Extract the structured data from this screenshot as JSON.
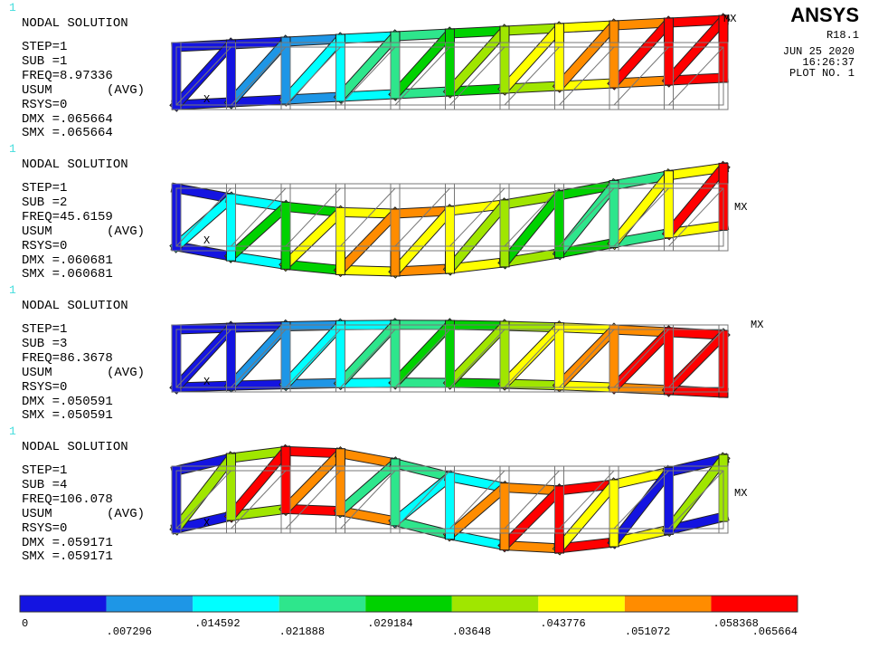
{
  "header": {
    "logo": "ANSYS",
    "version": "R18.1",
    "date": "JUN 25 2020",
    "time": "16:26:37",
    "plot": "PLOT NO.   1"
  },
  "panels": [
    {
      "window": "1",
      "title": "NODAL SOLUTION",
      "step": "STEP=1",
      "sub": "SUB =1",
      "freq": "FREQ=8.97336",
      "result": "USUM",
      "avg": "(AVG)",
      "rsys": "RSYS=0",
      "dmx": "DMX =.065664",
      "smx": "SMX =.065664",
      "mx": "MX",
      "origin": "X"
    },
    {
      "window": "1",
      "title": "NODAL SOLUTION",
      "step": "STEP=1",
      "sub": "SUB =2",
      "freq": "FREQ=45.6159",
      "result": "USUM",
      "avg": "(AVG)",
      "rsys": "RSYS=0",
      "dmx": "DMX =.060681",
      "smx": "SMX =.060681",
      "mx": "MX",
      "origin": "X"
    },
    {
      "window": "1",
      "title": "NODAL SOLUTION",
      "step": "STEP=1",
      "sub": "SUB =3",
      "freq": "FREQ=86.3678",
      "result": "USUM",
      "avg": "(AVG)",
      "rsys": "RSYS=0",
      "dmx": "DMX =.050591",
      "smx": "SMX =.050591",
      "mx": "MX",
      "origin": "X"
    },
    {
      "window": "1",
      "title": "NODAL SOLUTION",
      "step": "STEP=1",
      "sub": "SUB =4",
      "freq": "FREQ=106.078",
      "result": "USUM",
      "avg": "(AVG)",
      "rsys": "RSYS=0",
      "dmx": "DMX =.059171",
      "smx": "SMX =.059171",
      "mx": "MX",
      "origin": "X"
    }
  ],
  "legend": {
    "colors": [
      "#1414e1",
      "#1e96e6",
      "#00ffff",
      "#2ee68c",
      "#00d200",
      "#a0e600",
      "#ffff00",
      "#ff8c00",
      "#ff0000"
    ],
    "labels": [
      "0",
      ".007296",
      ".014592",
      ".021888",
      ".029184",
      ".03648",
      ".043776",
      ".051072",
      ".058368",
      ".065664"
    ]
  }
}
